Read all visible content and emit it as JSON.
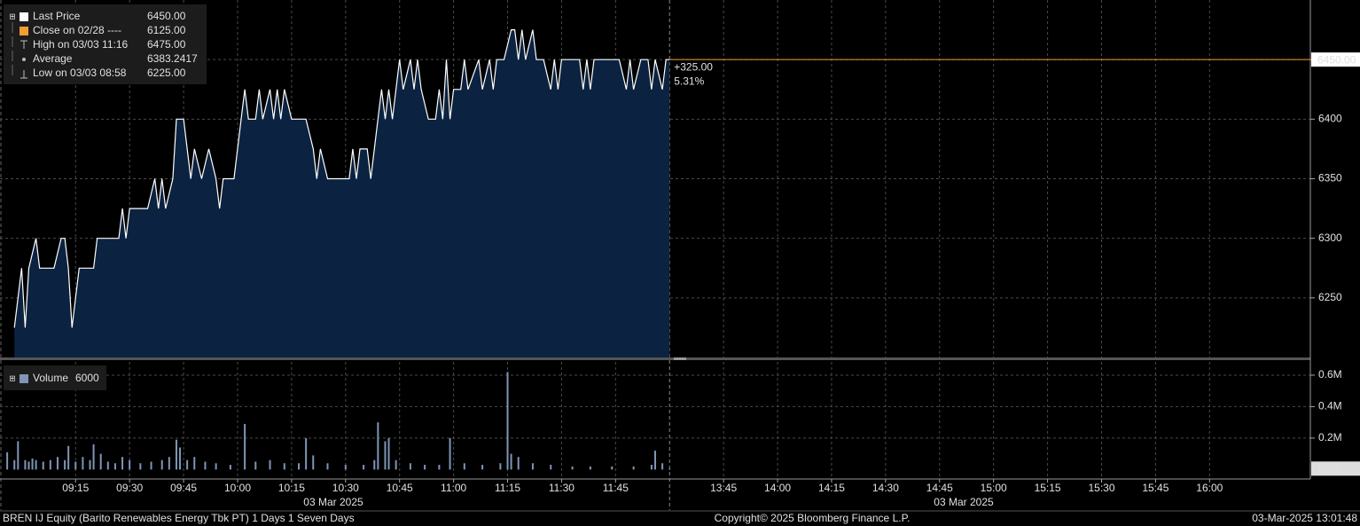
{
  "chart_data": [
    {
      "type": "area",
      "legend": [
        {
          "name": "Last Price",
          "value": "6450.00",
          "color": "#ffffff"
        },
        {
          "name": "Close on 02/28 ----",
          "value": "6125.00",
          "color": "#f39c34"
        },
        {
          "name": "High on 03/03 11:16",
          "value": "6475.00",
          "color": "#bbbbbb"
        },
        {
          "name": "Average",
          "value": "6383.2417",
          "color": "#bbbbbb"
        },
        {
          "name": "Low on 03/03 08:58",
          "value": "6225.00",
          "color": "#bbbbbb"
        }
      ],
      "x": [
        "08:58",
        "09:00",
        "09:01",
        "09:02",
        "09:04",
        "09:05",
        "09:09",
        "09:11",
        "09:12",
        "09:13",
        "09:14",
        "09:16",
        "09:20",
        "09:21",
        "09:27",
        "09:28",
        "09:29",
        "09:30",
        "09:35",
        "09:37",
        "09:38",
        "09:39",
        "09:40",
        "09:42",
        "09:43",
        "09:45",
        "09:47",
        "09:48",
        "09:50",
        "09:52",
        "09:54",
        "09:55",
        "09:56",
        "09:59",
        "10:01",
        "10:02",
        "10:03",
        "10:05",
        "10:06",
        "10:07",
        "10:09",
        "10:10",
        "10:11",
        "10:12",
        "10:13",
        "10:15",
        "10:19",
        "10:21",
        "10:22",
        "10:23",
        "10:25",
        "10:31",
        "10:32",
        "10:33",
        "10:34",
        "10:36",
        "10:37",
        "10:39",
        "10:40",
        "10:41",
        "10:42",
        "10:43",
        "10:45",
        "10:46",
        "10:48",
        "10:49",
        "10:50",
        "10:51",
        "10:53",
        "10:55",
        "10:56",
        "10:57",
        "10:58",
        "10:59",
        "11:00",
        "11:02",
        "11:03",
        "11:04",
        "11:07",
        "11:08",
        "11:10",
        "11:11",
        "11:12",
        "11:14",
        "11:16",
        "11:17",
        "11:18",
        "11:19",
        "11:20",
        "11:22",
        "11:23",
        "11:25",
        "11:27",
        "11:28",
        "11:29",
        "11:30",
        "11:35",
        "11:36",
        "11:37",
        "11:38",
        "11:39",
        "11:46",
        "11:48",
        "11:49",
        "11:50",
        "11:52",
        "11:54",
        "11:55",
        "11:56",
        "11:58",
        "11:59",
        "12:00"
      ],
      "series": [
        {
          "color": "#ffffff",
          "fill": "#0b2340",
          "values": [
            6225,
            6275,
            6225,
            6275,
            6300,
            6275,
            6275,
            6300,
            6300,
            6275,
            6225,
            6275,
            6275,
            6300,
            6300,
            6325,
            6300,
            6325,
            6325,
            6350,
            6325,
            6350,
            6325,
            6350,
            6400,
            6400,
            6350,
            6375,
            6350,
            6375,
            6350,
            6325,
            6350,
            6350,
            6400,
            6425,
            6400,
            6400,
            6425,
            6400,
            6425,
            6400,
            6425,
            6400,
            6425,
            6400,
            6400,
            6375,
            6350,
            6375,
            6350,
            6350,
            6375,
            6350,
            6375,
            6375,
            6350,
            6400,
            6425,
            6400,
            6425,
            6400,
            6450,
            6425,
            6450,
            6425,
            6450,
            6425,
            6400,
            6400,
            6425,
            6400,
            6450,
            6400,
            6425,
            6425,
            6450,
            6425,
            6450,
            6425,
            6450,
            6425,
            6450,
            6450,
            6475,
            6475,
            6450,
            6475,
            6450,
            6475,
            6450,
            6450,
            6425,
            6450,
            6425,
            6450,
            6450,
            6425,
            6450,
            6425,
            6450,
            6450,
            6425,
            6450,
            6425,
            6450,
            6450,
            6425,
            6450,
            6425,
            6450,
            6450
          ]
        }
      ],
      "last_value": 6450,
      "annotations": [
        "+325.00",
        "5.31%"
      ],
      "annotation_color": "#f39c34",
      "ylim": [
        6200,
        6500
      ],
      "yticks": [
        6250,
        6300,
        6350,
        6400,
        6450
      ],
      "grid": true
    },
    {
      "type": "bar",
      "legend": [
        {
          "name": "Volume",
          "value": "6000",
          "color": "#7f95b5"
        }
      ],
      "x": [
        "08:56",
        "08:58",
        "08:59",
        "09:01",
        "09:02",
        "09:03",
        "09:04",
        "09:06",
        "09:08",
        "09:10",
        "09:12",
        "09:13",
        "09:15",
        "09:17",
        "09:19",
        "09:20",
        "09:22",
        "09:24",
        "09:26",
        "09:28",
        "09:30",
        "09:33",
        "09:36",
        "09:39",
        "09:41",
        "09:43",
        "09:44",
        "09:46",
        "09:48",
        "09:51",
        "09:54",
        "09:58",
        "10:02",
        "10:05",
        "10:09",
        "10:13",
        "10:17",
        "10:19",
        "10:21",
        "10:25",
        "10:30",
        "10:35",
        "10:38",
        "10:39",
        "10:41",
        "10:42",
        "10:44",
        "10:48",
        "10:52",
        "10:56",
        "10:59",
        "11:03",
        "11:08",
        "11:13",
        "11:15",
        "11:16",
        "11:18",
        "11:22",
        "11:27",
        "11:33",
        "11:38",
        "11:44",
        "11:50",
        "11:55",
        "11:56",
        "11:58",
        "12:00"
      ],
      "values": [
        110000,
        60000,
        180000,
        60000,
        50000,
        70000,
        60000,
        50000,
        60000,
        80000,
        60000,
        150000,
        50000,
        80000,
        60000,
        160000,
        100000,
        50000,
        40000,
        80000,
        60000,
        40000,
        50000,
        60000,
        80000,
        190000,
        140000,
        60000,
        80000,
        50000,
        40000,
        30000,
        290000,
        50000,
        60000,
        40000,
        40000,
        200000,
        90000,
        40000,
        30000,
        30000,
        60000,
        300000,
        180000,
        200000,
        60000,
        40000,
        30000,
        30000,
        200000,
        40000,
        30000,
        40000,
        620000,
        100000,
        80000,
        40000,
        30000,
        20000,
        20000,
        20000,
        20000,
        30000,
        120000,
        40000,
        6000
      ],
      "color": "#7f95b5",
      "ylim": [
        -60000,
        690000
      ],
      "yticks": [
        {
          "value": 200000,
          "label": "0.2M"
        },
        {
          "value": 400000,
          "label": "0.4M"
        },
        {
          "value": 600000,
          "label": "0.6M"
        }
      ],
      "grid": true
    }
  ],
  "time_axis": {
    "xlim": [
      "08:54",
      "16:28"
    ],
    "break": [
      "12:00",
      "13:30"
    ],
    "xticks": [
      "09:15",
      "09:30",
      "09:45",
      "10:00",
      "10:15",
      "10:30",
      "10:45",
      "11:00",
      "11:15",
      "11:30",
      "11:45",
      "13:45",
      "14:00",
      "14:15",
      "14:30",
      "14:45",
      "15:00",
      "15:15",
      "15:30",
      "15:45",
      "16:00"
    ],
    "date_labels": [
      "03 Mar 2025",
      "03 Mar 2025"
    ]
  },
  "footer": {
    "left": "BREN IJ Equity (Barito Renewables Energy Tbk PT) 1 Days 1 Seven Days",
    "center": "Copyright© 2025 Bloomberg Finance L.P.",
    "right": "03-Mar-2025 13:01:48"
  }
}
